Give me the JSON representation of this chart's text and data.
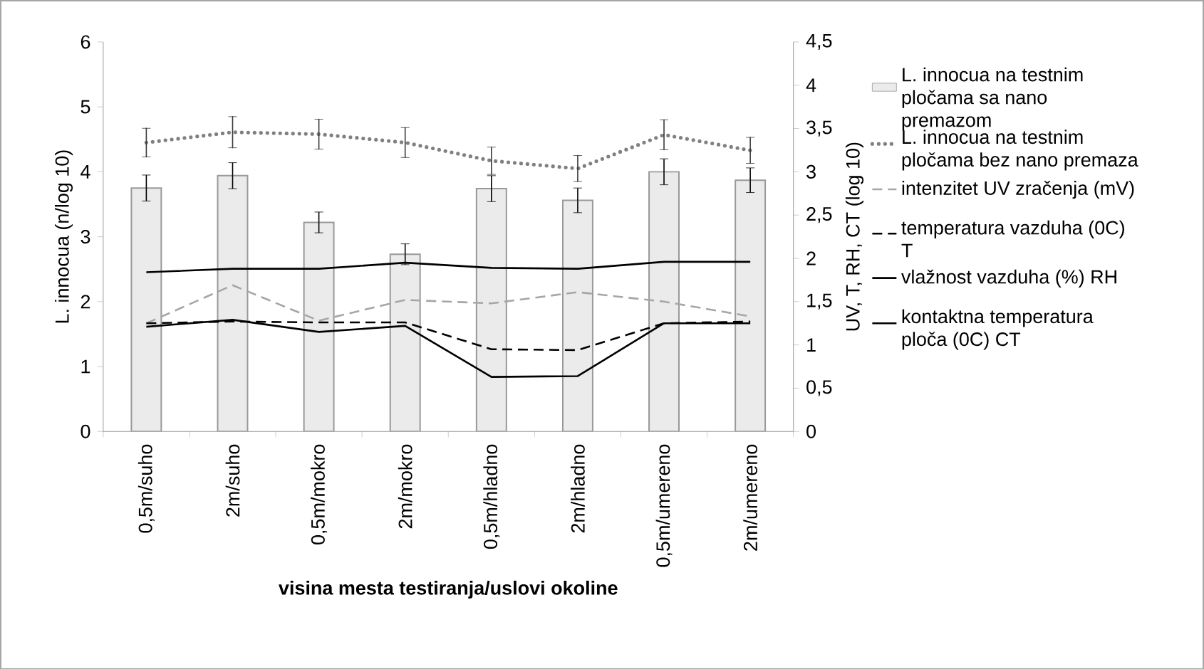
{
  "chart_data": {
    "type": "bar",
    "xlabel": "visina mesta testiranja/uslovi okoline",
    "ylabel": "L. innocua  (n/log 10)",
    "y2label": "UV, T, RH, CT (log 10)",
    "categories": [
      "0,5m/suho",
      "2m/suho",
      "0,5m/mokro",
      "2m/mokro",
      "0,5m/hladno",
      "2m/hladno",
      "0,5m/umereno",
      "2m/umereno"
    ],
    "series": [
      {
        "name": "L. innocua na testnim pločama sa nano premazom",
        "color": "#ebebeb",
        "values": [
          3.75,
          3.94,
          3.22,
          2.73,
          3.74,
          3.56,
          4.0,
          3.87
        ],
        "errors": [
          0.2,
          0.2,
          0.16,
          0.16,
          0.2,
          0.19,
          0.2,
          0.19
        ]
      },
      {
        "name": "L. innocua na testnim pločama bez nano premaza",
        "type": "line",
        "line_style": "dotted",
        "color": "#808080",
        "values": [
          4.45,
          4.61,
          4.58,
          4.45,
          4.17,
          4.05,
          4.57,
          4.33
        ],
        "errors": [
          0.22,
          0.24,
          0.23,
          0.23,
          0.21,
          0.2,
          0.23,
          0.2
        ]
      },
      {
        "name": "intenzitet UV zračenja (mV)",
        "type": "line",
        "axis": "y2",
        "line_style": "dashed",
        "color": "#a6a6a6",
        "values": [
          1.25,
          1.69,
          1.28,
          1.52,
          1.48,
          1.61,
          1.5,
          1.33
        ]
      },
      {
        "name": "temperatura vazduha (0C) T",
        "type": "line",
        "axis": "y2",
        "line_style": "dashed",
        "color": "#000000",
        "values": [
          1.25,
          1.27,
          1.26,
          1.26,
          0.95,
          0.94,
          1.25,
          1.27
        ]
      },
      {
        "name": "vlažnost vazduha (%) RH",
        "type": "line",
        "axis": "y2",
        "line_style": "solid",
        "color": "#000000",
        "values": [
          1.84,
          1.88,
          1.88,
          1.95,
          1.89,
          1.88,
          1.96,
          1.96
        ]
      },
      {
        "name": "kontaktna temperatura ploča (0C) CT",
        "type": "line",
        "axis": "y2",
        "line_style": "solid",
        "color": "#000000",
        "values": [
          1.21,
          1.29,
          1.15,
          1.22,
          0.63,
          0.64,
          1.25,
          1.25
        ]
      }
    ],
    "ylim": [
      0,
      6
    ],
    "yticks": [
      0,
      1,
      2,
      3,
      4,
      5,
      6
    ],
    "y2lim": [
      0,
      4.5
    ],
    "y2ticks": [
      0,
      {
        "value": 0.5,
        "label": "0,5"
      },
      1,
      {
        "value": 1.5,
        "label": "1,5"
      },
      2,
      {
        "value": 2.5,
        "label": "2,5"
      },
      3,
      {
        "value": 3.5,
        "label": "3,5"
      },
      4,
      {
        "value": 4.5,
        "label": "4,5"
      }
    ],
    "legend": "right",
    "grid": false,
    "marker": "none"
  }
}
